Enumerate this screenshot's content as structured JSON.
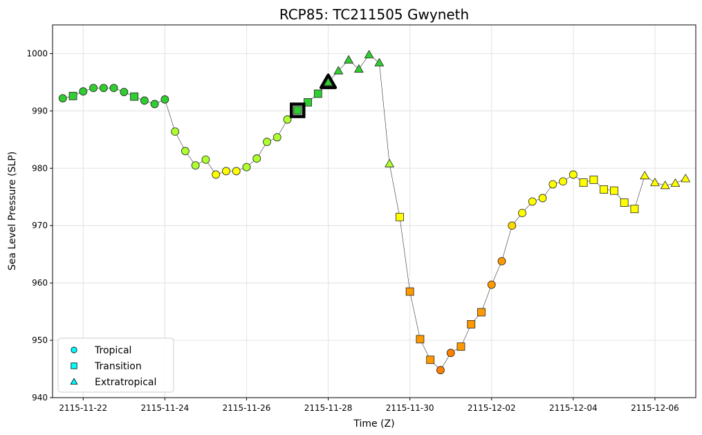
{
  "chart_data": {
    "type": "scatter",
    "title": "RCP85: TC211505 Gwyneth",
    "xlabel": "Time (Z)",
    "ylabel": "Sea Level Pressure (SLP)",
    "ylim": [
      940,
      1005
    ],
    "xlim": [
      "2115-11-21T06:00",
      "2115-12-07T00:00"
    ],
    "yticks": [
      940,
      950,
      960,
      970,
      980,
      990,
      1000
    ],
    "xticks": [
      "2115-11-22",
      "2115-11-24",
      "2115-11-26",
      "2115-11-28",
      "2115-11-30",
      "2115-12-02",
      "2115-12-04",
      "2115-12-06"
    ],
    "grid": true,
    "legend_position": "lower-left",
    "legend": [
      {
        "label": "Tropical",
        "marker": "circle",
        "color": "#00ffff"
      },
      {
        "label": "Transition",
        "marker": "square",
        "color": "#00ffff"
      },
      {
        "label": "Extratropical",
        "marker": "triangle",
        "color": "#00ffff"
      }
    ],
    "category_colors": {
      "g": "#32cd32",
      "l": "#adff2f",
      "y": "#ffff00",
      "d": "#ffd700",
      "a": "#ff9900",
      "o": "#ff8000"
    },
    "highlighted_points": [
      {
        "t": "2115-11-27T06:00",
        "slp": 990.1,
        "marker": "square",
        "cat": "g"
      },
      {
        "t": "2115-11-28T00:00",
        "slp": 995.0,
        "marker": "triangle",
        "cat": "g"
      }
    ],
    "points": [
      {
        "t": "2115-11-21T12:00",
        "slp": 992.2,
        "marker": "circle",
        "cat": "g"
      },
      {
        "t": "2115-11-21T18:00",
        "slp": 992.6,
        "marker": "square",
        "cat": "g"
      },
      {
        "t": "2115-11-22T00:00",
        "slp": 993.4,
        "marker": "circle",
        "cat": "g"
      },
      {
        "t": "2115-11-22T06:00",
        "slp": 994.0,
        "marker": "circle",
        "cat": "g"
      },
      {
        "t": "2115-11-22T12:00",
        "slp": 994.0,
        "marker": "circle",
        "cat": "g"
      },
      {
        "t": "2115-11-22T18:00",
        "slp": 994.0,
        "marker": "circle",
        "cat": "g"
      },
      {
        "t": "2115-11-23T00:00",
        "slp": 993.3,
        "marker": "circle",
        "cat": "g"
      },
      {
        "t": "2115-11-23T06:00",
        "slp": 992.5,
        "marker": "square",
        "cat": "g"
      },
      {
        "t": "2115-11-23T12:00",
        "slp": 991.8,
        "marker": "circle",
        "cat": "g"
      },
      {
        "t": "2115-11-23T18:00",
        "slp": 991.2,
        "marker": "circle",
        "cat": "g"
      },
      {
        "t": "2115-11-24T00:00",
        "slp": 992.0,
        "marker": "circle",
        "cat": "g"
      },
      {
        "t": "2115-11-24T06:00",
        "slp": 986.4,
        "marker": "circle",
        "cat": "l"
      },
      {
        "t": "2115-11-24T12:00",
        "slp": 983.0,
        "marker": "circle",
        "cat": "l"
      },
      {
        "t": "2115-11-24T18:00",
        "slp": 980.5,
        "marker": "circle",
        "cat": "l"
      },
      {
        "t": "2115-11-25T00:00",
        "slp": 981.5,
        "marker": "circle",
        "cat": "l"
      },
      {
        "t": "2115-11-25T06:00",
        "slp": 978.9,
        "marker": "circle",
        "cat": "y"
      },
      {
        "t": "2115-11-25T12:00",
        "slp": 979.5,
        "marker": "circle",
        "cat": "y"
      },
      {
        "t": "2115-11-25T18:00",
        "slp": 979.5,
        "marker": "circle",
        "cat": "y"
      },
      {
        "t": "2115-11-26T00:00",
        "slp": 980.2,
        "marker": "circle",
        "cat": "l"
      },
      {
        "t": "2115-11-26T06:00",
        "slp": 981.7,
        "marker": "circle",
        "cat": "l"
      },
      {
        "t": "2115-11-26T12:00",
        "slp": 984.6,
        "marker": "circle",
        "cat": "l"
      },
      {
        "t": "2115-11-26T18:00",
        "slp": 985.4,
        "marker": "circle",
        "cat": "l"
      },
      {
        "t": "2115-11-27T00:00",
        "slp": 988.5,
        "marker": "circle",
        "cat": "l"
      },
      {
        "t": "2115-11-27T06:00",
        "slp": 990.1,
        "marker": "square",
        "cat": "g"
      },
      {
        "t": "2115-11-27T12:00",
        "slp": 991.5,
        "marker": "square",
        "cat": "g"
      },
      {
        "t": "2115-11-27T18:00",
        "slp": 993.0,
        "marker": "square",
        "cat": "g"
      },
      {
        "t": "2115-11-28T00:00",
        "slp": 995.0,
        "marker": "triangle",
        "cat": "g"
      },
      {
        "t": "2115-11-28T06:00",
        "slp": 997.0,
        "marker": "triangle",
        "cat": "g"
      },
      {
        "t": "2115-11-28T12:00",
        "slp": 998.9,
        "marker": "triangle",
        "cat": "g"
      },
      {
        "t": "2115-11-28T18:00",
        "slp": 997.3,
        "marker": "triangle",
        "cat": "g"
      },
      {
        "t": "2115-11-29T00:00",
        "slp": 999.8,
        "marker": "triangle",
        "cat": "g"
      },
      {
        "t": "2115-11-29T06:00",
        "slp": 998.4,
        "marker": "triangle",
        "cat": "g"
      },
      {
        "t": "2115-11-29T12:00",
        "slp": 980.8,
        "marker": "triangle",
        "cat": "l"
      },
      {
        "t": "2115-11-29T18:00",
        "slp": 971.5,
        "marker": "square",
        "cat": "y"
      },
      {
        "t": "2115-11-30T00:00",
        "slp": 958.5,
        "marker": "square",
        "cat": "a"
      },
      {
        "t": "2115-11-30T06:00",
        "slp": 950.2,
        "marker": "square",
        "cat": "a"
      },
      {
        "t": "2115-11-30T12:00",
        "slp": 946.6,
        "marker": "square",
        "cat": "a"
      },
      {
        "t": "2115-11-30T18:00",
        "slp": 944.8,
        "marker": "circle",
        "cat": "o"
      },
      {
        "t": "2115-12-01T00:00",
        "slp": 947.8,
        "marker": "circle",
        "cat": "o"
      },
      {
        "t": "2115-12-01T06:00",
        "slp": 948.9,
        "marker": "square",
        "cat": "a"
      },
      {
        "t": "2115-12-01T12:00",
        "slp": 952.8,
        "marker": "square",
        "cat": "a"
      },
      {
        "t": "2115-12-01T18:00",
        "slp": 954.9,
        "marker": "square",
        "cat": "a"
      },
      {
        "t": "2115-12-02T00:00",
        "slp": 959.7,
        "marker": "circle",
        "cat": "a"
      },
      {
        "t": "2115-12-02T06:00",
        "slp": 963.8,
        "marker": "circle",
        "cat": "a"
      },
      {
        "t": "2115-12-02T12:00",
        "slp": 970.0,
        "marker": "circle",
        "cat": "d"
      },
      {
        "t": "2115-12-02T18:00",
        "slp": 972.2,
        "marker": "circle",
        "cat": "y"
      },
      {
        "t": "2115-12-03T00:00",
        "slp": 974.2,
        "marker": "circle",
        "cat": "y"
      },
      {
        "t": "2115-12-03T06:00",
        "slp": 974.8,
        "marker": "circle",
        "cat": "y"
      },
      {
        "t": "2115-12-03T12:00",
        "slp": 977.2,
        "marker": "circle",
        "cat": "y"
      },
      {
        "t": "2115-12-03T18:00",
        "slp": 977.7,
        "marker": "circle",
        "cat": "y"
      },
      {
        "t": "2115-12-04T00:00",
        "slp": 978.9,
        "marker": "circle",
        "cat": "y"
      },
      {
        "t": "2115-12-04T06:00",
        "slp": 977.5,
        "marker": "square",
        "cat": "y"
      },
      {
        "t": "2115-12-04T12:00",
        "slp": 978.0,
        "marker": "square",
        "cat": "y"
      },
      {
        "t": "2115-12-04T18:00",
        "slp": 976.3,
        "marker": "square",
        "cat": "y"
      },
      {
        "t": "2115-12-05T00:00",
        "slp": 976.1,
        "marker": "square",
        "cat": "y"
      },
      {
        "t": "2115-12-05T06:00",
        "slp": 974.0,
        "marker": "square",
        "cat": "y"
      },
      {
        "t": "2115-12-05T12:00",
        "slp": 972.9,
        "marker": "square",
        "cat": "y"
      },
      {
        "t": "2115-12-05T18:00",
        "slp": 978.7,
        "marker": "triangle",
        "cat": "y"
      },
      {
        "t": "2115-12-06T00:00",
        "slp": 977.5,
        "marker": "triangle",
        "cat": "y"
      },
      {
        "t": "2115-12-06T06:00",
        "slp": 977.0,
        "marker": "triangle",
        "cat": "y"
      },
      {
        "t": "2115-12-06T12:00",
        "slp": 977.4,
        "marker": "triangle",
        "cat": "y"
      },
      {
        "t": "2115-12-06T18:00",
        "slp": 978.2,
        "marker": "triangle",
        "cat": "y"
      }
    ]
  }
}
